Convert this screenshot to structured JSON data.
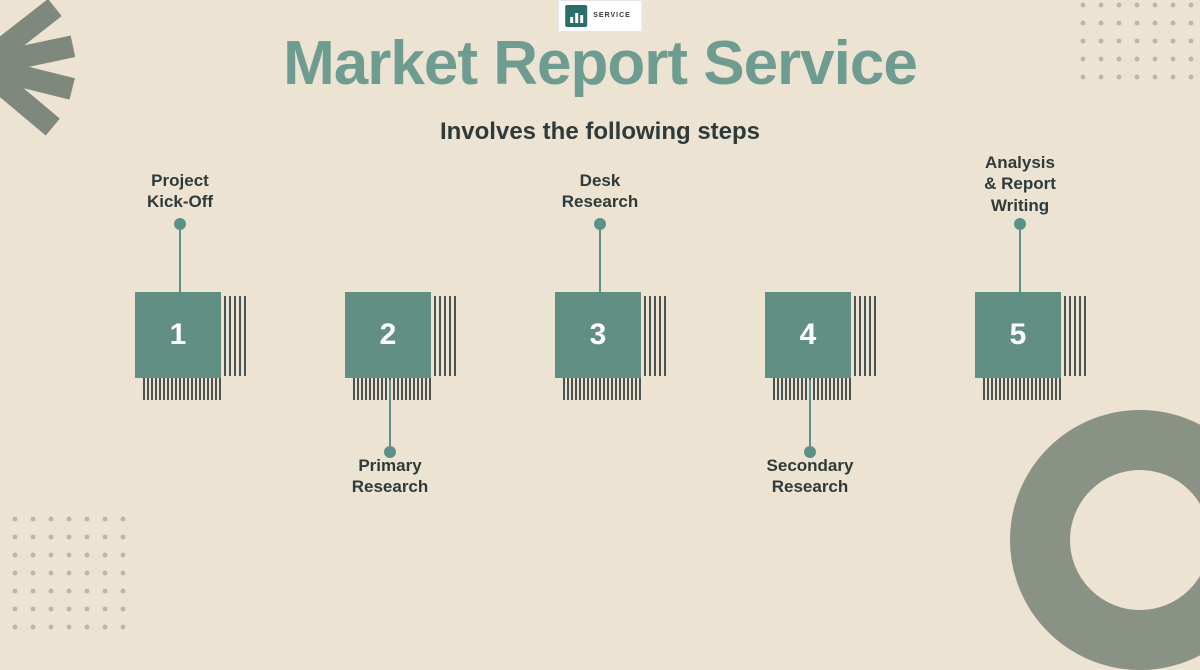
{
  "logo": {
    "text": "SERVICE"
  },
  "title": {
    "text": "Market Report Service",
    "color": "#6f9c90",
    "fontsize": 62
  },
  "subtitle": {
    "text": "Involves the following steps",
    "fontsize": 24
  },
  "styling": {
    "background_color": "#ece3d3",
    "accent_color": "#5b9288",
    "text_color": "#2f3a3a",
    "decoration_color": "#7e887c",
    "box_size": 86,
    "box_number_fontsize": 30,
    "label_fontsize": 17,
    "connector_length": 70,
    "dot_diameter": 12,
    "step_gap": 110
  },
  "steps": [
    {
      "number": "1",
      "label": "Project\nKick-Off",
      "label_position": "top",
      "box_color": "#628f84"
    },
    {
      "number": "2",
      "label": "Primary\nResearch",
      "label_position": "bottom",
      "box_color": "#628f84"
    },
    {
      "number": "3",
      "label": "Desk\nResearch",
      "label_position": "top",
      "box_color": "#628f84"
    },
    {
      "number": "4",
      "label": "Secondary\nResearch",
      "label_position": "bottom",
      "box_color": "#628f84"
    },
    {
      "number": "5",
      "label": "Analysis\n& Report\nWriting",
      "label_position": "top",
      "box_color": "#628f84"
    }
  ]
}
